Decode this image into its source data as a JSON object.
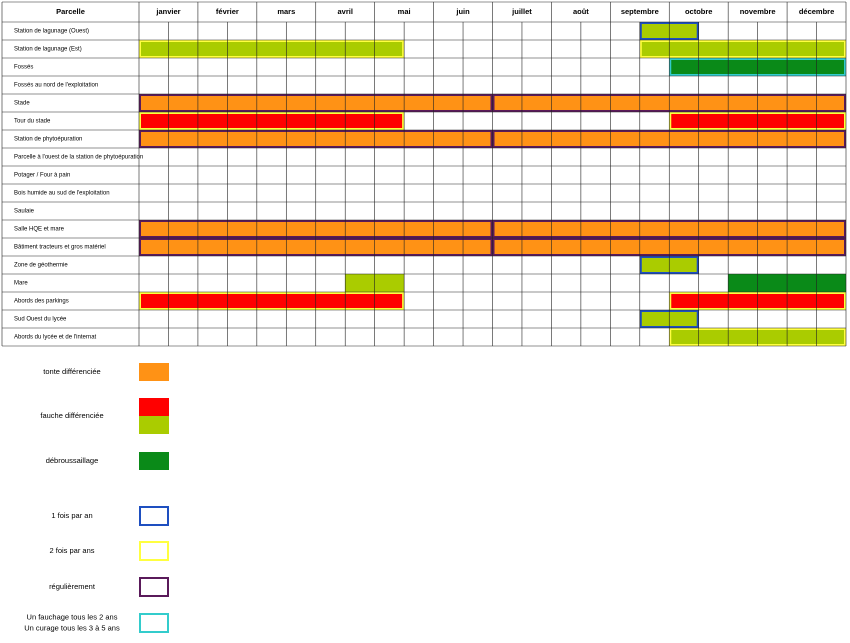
{
  "table": {
    "header": {
      "parcel": "Parcelle",
      "months": [
        "janvier",
        "février",
        "mars",
        "avril",
        "mai",
        "juin",
        "juillet",
        "août",
        "septembre",
        "octobre",
        "novembre",
        "décembre"
      ]
    },
    "rows": [
      {
        "label": "Station de lagunage (Ouest)",
        "bars": [
          {
            "start": 17,
            "end": 19,
            "fill": "#aacc00",
            "border": "#1e4fc0"
          }
        ]
      },
      {
        "label": "Station de lagunage (Est)",
        "bars": [
          {
            "start": 0,
            "end": 9,
            "fill": "#aacc00",
            "border": "#ffff40"
          },
          {
            "start": 17,
            "end": 24,
            "fill": "#aacc00",
            "border": "#ffff40"
          }
        ]
      },
      {
        "label": "Fossés",
        "bars": [
          {
            "start": 18,
            "end": 24,
            "fill": "#0a8a18",
            "border": "#33cccc"
          }
        ]
      },
      {
        "label": "Fossés au nord de l'exploitation",
        "bars": []
      },
      {
        "label": "Stade",
        "bars": [
          {
            "start": 0,
            "end": 12,
            "fill": "#ff9215",
            "border": "#5a1a5a"
          },
          {
            "start": 12,
            "end": 24,
            "fill": "#ff9215",
            "border": "#5a1a5a"
          }
        ]
      },
      {
        "label": "Tour du stade",
        "bars": [
          {
            "start": 0,
            "end": 9,
            "fill": "#ff0000",
            "border": "#ffff40"
          },
          {
            "start": 18,
            "end": 24,
            "fill": "#ff0000",
            "border": "#ffff40"
          }
        ]
      },
      {
        "label": "Station de phytoépuration",
        "bars": [
          {
            "start": 0,
            "end": 12,
            "fill": "#ff9215",
            "border": "#5a1a5a"
          },
          {
            "start": 12,
            "end": 24,
            "fill": "#ff9215",
            "border": "#5a1a5a"
          }
        ]
      },
      {
        "label": "Parcelle à l'ouest de la station de phytoépuration",
        "bars": []
      },
      {
        "label": "Potager / Four à pain",
        "bars": []
      },
      {
        "label": "Bois humide au sud de l'exploitation",
        "bars": []
      },
      {
        "label": "Saulaie",
        "bars": []
      },
      {
        "label": "Salle HQE et mare",
        "bars": [
          {
            "start": 0,
            "end": 12,
            "fill": "#ff9215",
            "border": "#5a1a5a"
          },
          {
            "start": 12,
            "end": 24,
            "fill": "#ff9215",
            "border": "#5a1a5a"
          }
        ]
      },
      {
        "label": "Bâtiment tracteurs et gros matériel",
        "bars": [
          {
            "start": 0,
            "end": 12,
            "fill": "#ff9215",
            "border": "#5a1a5a"
          },
          {
            "start": 12,
            "end": 24,
            "fill": "#ff9215",
            "border": "#5a1a5a"
          }
        ]
      },
      {
        "label": "Zone de géothermie",
        "bars": [
          {
            "start": 17,
            "end": 19,
            "fill": "#aacc00",
            "border": "#1e4fc0"
          }
        ]
      },
      {
        "label": "Mare",
        "bars": [
          {
            "start": 7,
            "end": 9,
            "fill": "#aacc00",
            "border": "#aacc00"
          },
          {
            "start": 20,
            "end": 24,
            "fill": "#0a8a18",
            "border": "#0a8a18"
          }
        ]
      },
      {
        "label": "Abords des parkings",
        "bars": [
          {
            "start": 0,
            "end": 9,
            "fill": "#ff0000",
            "border": "#ffff40"
          },
          {
            "start": 18,
            "end": 24,
            "fill": "#ff0000",
            "border": "#ffff40"
          }
        ]
      },
      {
        "label": "Sud Ouest du lycée",
        "bars": [
          {
            "start": 17,
            "end": 19,
            "fill": "#aacc00",
            "border": "#1e4fc0"
          }
        ]
      },
      {
        "label": "Abords du lycée et de l'internat",
        "bars": [
          {
            "start": 18,
            "end": 24,
            "fill": "#aacc00",
            "border": "#ffff40"
          }
        ]
      }
    ]
  },
  "legend": [
    {
      "label": [
        "tonte différenciée"
      ],
      "fills": [
        "#ff9215"
      ]
    },
    {
      "label": [
        "fauche différenciée"
      ],
      "fills": [
        "#ff0000",
        "#aacc00"
      ]
    },
    {
      "label": [
        "débroussaillage"
      ],
      "fills": [
        "#0a8a18"
      ]
    },
    {
      "label": [
        "1 fois par an"
      ],
      "border": "#1e4fc0"
    },
    {
      "label": [
        "2 fois par ans"
      ],
      "border": "#ffff40"
    },
    {
      "label": [
        "régulièrement"
      ],
      "border": "#5a1a5a"
    },
    {
      "label": [
        "Un fauchage tous les 2 ans",
        "Un curage tous les 3 à 5 ans"
      ],
      "border": "#33cccc"
    }
  ]
}
